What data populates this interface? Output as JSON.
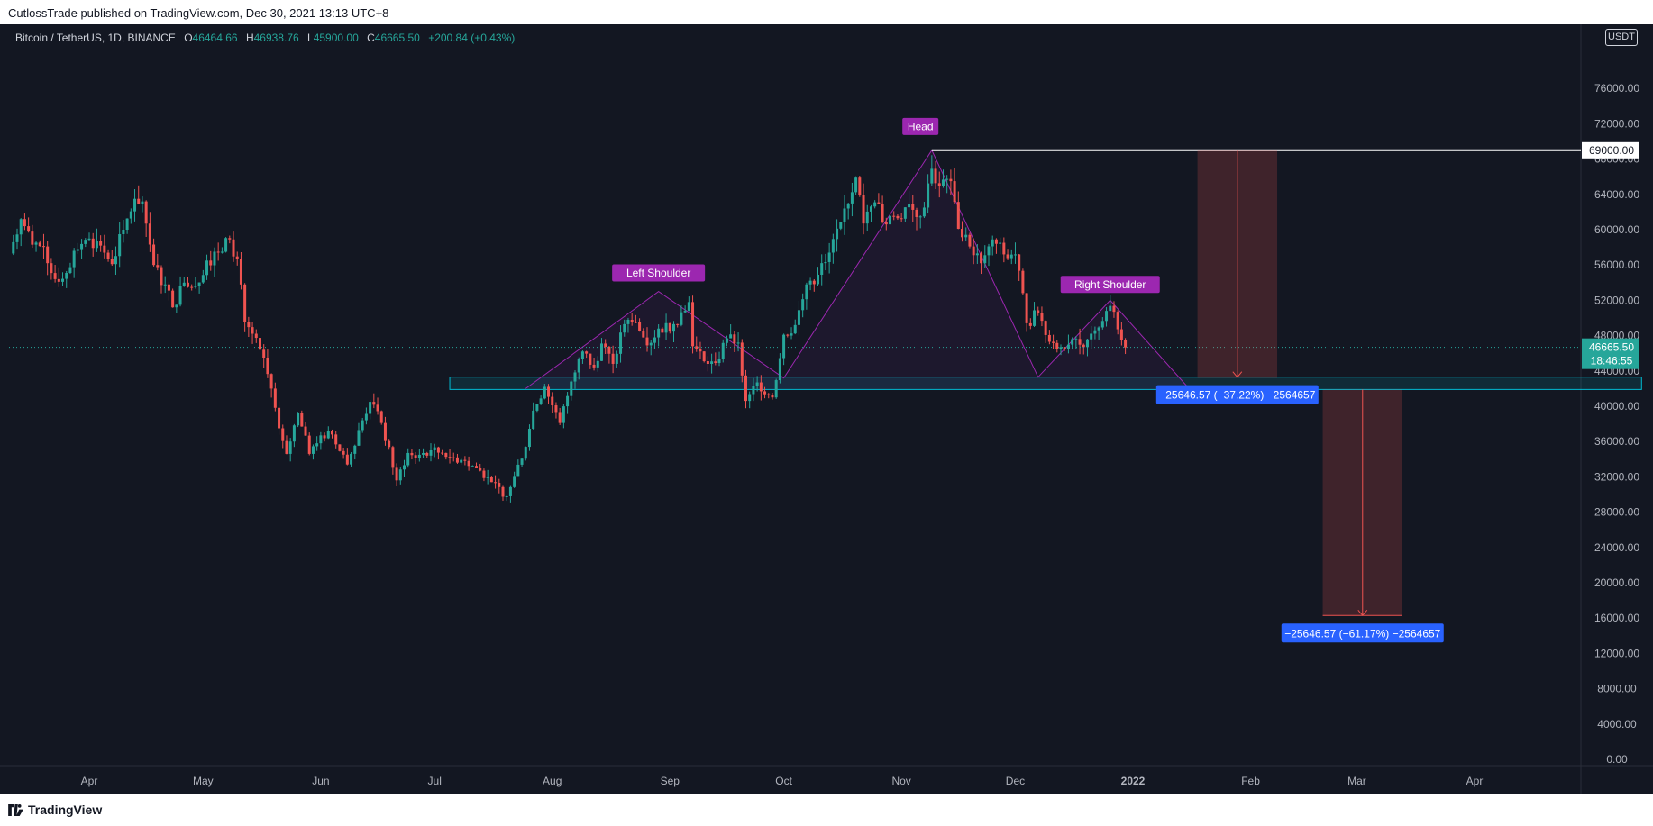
{
  "header": {
    "publisher_line": "CutlossTrade published on TradingView.com, Dec 30, 2021 13:13 UTC+8"
  },
  "legend": {
    "symbol": "Bitcoin / TetherUS, 1D, BINANCE",
    "open_label": "O",
    "open": "46464.66",
    "high_label": "H",
    "high": "46938.76",
    "low_label": "L",
    "low": "45900.00",
    "close_label": "C",
    "close": "46665.50",
    "change": "+200.84 (+0.43%)"
  },
  "currency_badge": "USDT",
  "footer": {
    "brand": "TradingView"
  },
  "colors": {
    "background": "#131722",
    "bull": "#26a69a",
    "bear": "#ef5350",
    "pattern": "#9c27b0",
    "neckline": "#00bcd4",
    "target_label": "#2962ff",
    "resistance": "#ffffff"
  },
  "chart_data": {
    "type": "candlestick",
    "x_ticks": [
      "Apr",
      "May",
      "Jun",
      "Jul",
      "Aug",
      "Sep",
      "Oct",
      "Nov",
      "Dec",
      "2022",
      "Feb",
      "Mar",
      "Apr"
    ],
    "x_tick_dates": [
      "2021-04-01",
      "2021-05-01",
      "2021-06-01",
      "2021-07-01",
      "2021-08-01",
      "2021-09-01",
      "2021-10-01",
      "2021-11-01",
      "2021-12-01",
      "2022-01-01",
      "2022-02-01",
      "2022-03-01",
      "2022-04-01"
    ],
    "y_ticks": [
      "0.00",
      "4000.00",
      "8000.00",
      "12000.00",
      "16000.00",
      "20000.00",
      "24000.00",
      "28000.00",
      "32000.00",
      "36000.00",
      "40000.00",
      "44000.00",
      "48000.00",
      "52000.00",
      "56000.00",
      "60000.00",
      "64000.00",
      "68000.00",
      "72000.00",
      "76000.00"
    ],
    "ylim": [
      0,
      80000
    ],
    "last_price": "46665.50",
    "countdown": "18:46:55",
    "resistance_level": "69000.00",
    "closes": [
      [
        "2021-03-11",
        57300
      ],
      [
        "2021-03-14",
        61200
      ],
      [
        "2021-03-17",
        58300
      ],
      [
        "2021-03-20",
        58100
      ],
      [
        "2021-03-23",
        54400
      ],
      [
        "2021-03-26",
        55100
      ],
      [
        "2021-03-29",
        57800
      ],
      [
        "2021-04-01",
        59000
      ],
      [
        "2021-04-04",
        58200
      ],
      [
        "2021-04-07",
        56100
      ],
      [
        "2021-04-10",
        60000
      ],
      [
        "2021-04-13",
        63500
      ],
      [
        "2021-04-15",
        63200
      ],
      [
        "2021-04-18",
        56000
      ],
      [
        "2021-04-21",
        53800
      ],
      [
        "2021-04-23",
        51200
      ],
      [
        "2021-04-26",
        54000
      ],
      [
        "2021-04-29",
        53600
      ],
      [
        "2021-05-02",
        56500
      ],
      [
        "2021-05-05",
        57400
      ],
      [
        "2021-05-08",
        58900
      ],
      [
        "2021-05-10",
        56700
      ],
      [
        "2021-05-12",
        49500
      ],
      [
        "2021-05-16",
        46400
      ],
      [
        "2021-05-19",
        42000
      ],
      [
        "2021-05-21",
        37500
      ],
      [
        "2021-05-23",
        34600
      ],
      [
        "2021-05-26",
        39200
      ],
      [
        "2021-05-29",
        34600
      ],
      [
        "2021-06-01",
        36700
      ],
      [
        "2021-06-04",
        36800
      ],
      [
        "2021-06-08",
        33400
      ],
      [
        "2021-06-11",
        37300
      ],
      [
        "2021-06-14",
        40500
      ],
      [
        "2021-06-17",
        38100
      ],
      [
        "2021-06-21",
        31600
      ],
      [
        "2021-06-24",
        34700
      ],
      [
        "2021-06-27",
        34500
      ],
      [
        "2021-06-30",
        35000
      ],
      [
        "2021-07-03",
        34700
      ],
      [
        "2021-07-06",
        34200
      ],
      [
        "2021-07-09",
        33800
      ],
      [
        "2021-07-13",
        32700
      ],
      [
        "2021-07-16",
        31400
      ],
      [
        "2021-07-20",
        29800
      ],
      [
        "2021-07-22",
        32100
      ],
      [
        "2021-07-25",
        35400
      ],
      [
        "2021-07-27",
        39500
      ],
      [
        "2021-07-30",
        42200
      ],
      [
        "2021-08-03",
        38100
      ],
      [
        "2021-08-06",
        42800
      ],
      [
        "2021-08-09",
        46200
      ],
      [
        "2021-08-12",
        44400
      ],
      [
        "2021-08-14",
        47100
      ],
      [
        "2021-08-17",
        44800
      ],
      [
        "2021-08-20",
        49300
      ],
      [
        "2021-08-23",
        49500
      ],
      [
        "2021-08-26",
        46900
      ],
      [
        "2021-08-29",
        48800
      ],
      [
        "2021-09-02",
        49300
      ],
      [
        "2021-09-06",
        51800
      ],
      [
        "2021-09-07",
        46800
      ],
      [
        "2021-09-10",
        45100
      ],
      [
        "2021-09-13",
        44900
      ],
      [
        "2021-09-16",
        47700
      ],
      [
        "2021-09-19",
        47200
      ],
      [
        "2021-09-21",
        40600
      ],
      [
        "2021-09-24",
        42700
      ],
      [
        "2021-09-28",
        41000
      ],
      [
        "2021-10-01",
        48100
      ],
      [
        "2021-10-04",
        49200
      ],
      [
        "2021-10-07",
        53800
      ],
      [
        "2021-10-10",
        54900
      ],
      [
        "2021-10-13",
        57400
      ],
      [
        "2021-10-16",
        60900
      ],
      [
        "2021-10-20",
        65900
      ],
      [
        "2021-10-22",
        60700
      ],
      [
        "2021-10-25",
        63100
      ],
      [
        "2021-10-28",
        60600
      ],
      [
        "2021-10-31",
        61300
      ],
      [
        "2021-11-03",
        62900
      ],
      [
        "2021-11-06",
        61500
      ],
      [
        "2021-11-09",
        66900
      ],
      [
        "2021-11-11",
        64900
      ],
      [
        "2021-11-14",
        65500
      ],
      [
        "2021-11-16",
        60100
      ],
      [
        "2021-11-19",
        58100
      ],
      [
        "2021-11-22",
        56200
      ],
      [
        "2021-11-25",
        58900
      ],
      [
        "2021-11-28",
        57200
      ],
      [
        "2021-12-01",
        57200
      ],
      [
        "2021-12-04",
        49400
      ],
      [
        "2021-12-07",
        50600
      ],
      [
        "2021-12-10",
        47300
      ],
      [
        "2021-12-13",
        46700
      ],
      [
        "2021-12-16",
        47600
      ],
      [
        "2021-12-19",
        46700
      ],
      [
        "2021-12-22",
        48600
      ],
      [
        "2021-12-25",
        50800
      ],
      [
        "2021-12-27",
        50700
      ],
      [
        "2021-12-29",
        47500
      ],
      [
        "2021-12-30",
        46665
      ]
    ],
    "annotations": [
      {
        "kind": "pattern-label",
        "text": "Left Shoulder",
        "date": "2021-08-29",
        "price": 55100
      },
      {
        "kind": "pattern-label",
        "text": "Head",
        "date": "2021-11-06",
        "price": 71700
      },
      {
        "kind": "pattern-label",
        "text": "Right Shoulder",
        "date": "2021-12-26",
        "price": 53800
      },
      {
        "kind": "measure",
        "text": "−25646.57 (−37.22%) −2564657",
        "date_from": "2022-01-18",
        "date_to": "2022-02-08",
        "price_from": 69000,
        "price_to": 43300
      },
      {
        "kind": "measure",
        "text": "−25646.57 (−61.17%) −2564657",
        "date_from": "2022-02-20",
        "date_to": "2022-03-13",
        "price_from": 41900,
        "price_to": 16300
      }
    ],
    "pattern_path": [
      [
        "2021-07-25",
        42000
      ],
      [
        "2021-08-29",
        53000
      ],
      [
        "2021-10-01",
        43200
      ],
      [
        "2021-11-09",
        69000
      ],
      [
        "2021-12-07",
        43300
      ],
      [
        "2021-12-26",
        52000
      ],
      [
        "2022-01-16",
        41900
      ]
    ],
    "neckline_zone": {
      "date_from": "2021-07-05",
      "date_to": "2022-05-15",
      "price_low": 41900,
      "price_high": 43300
    }
  }
}
